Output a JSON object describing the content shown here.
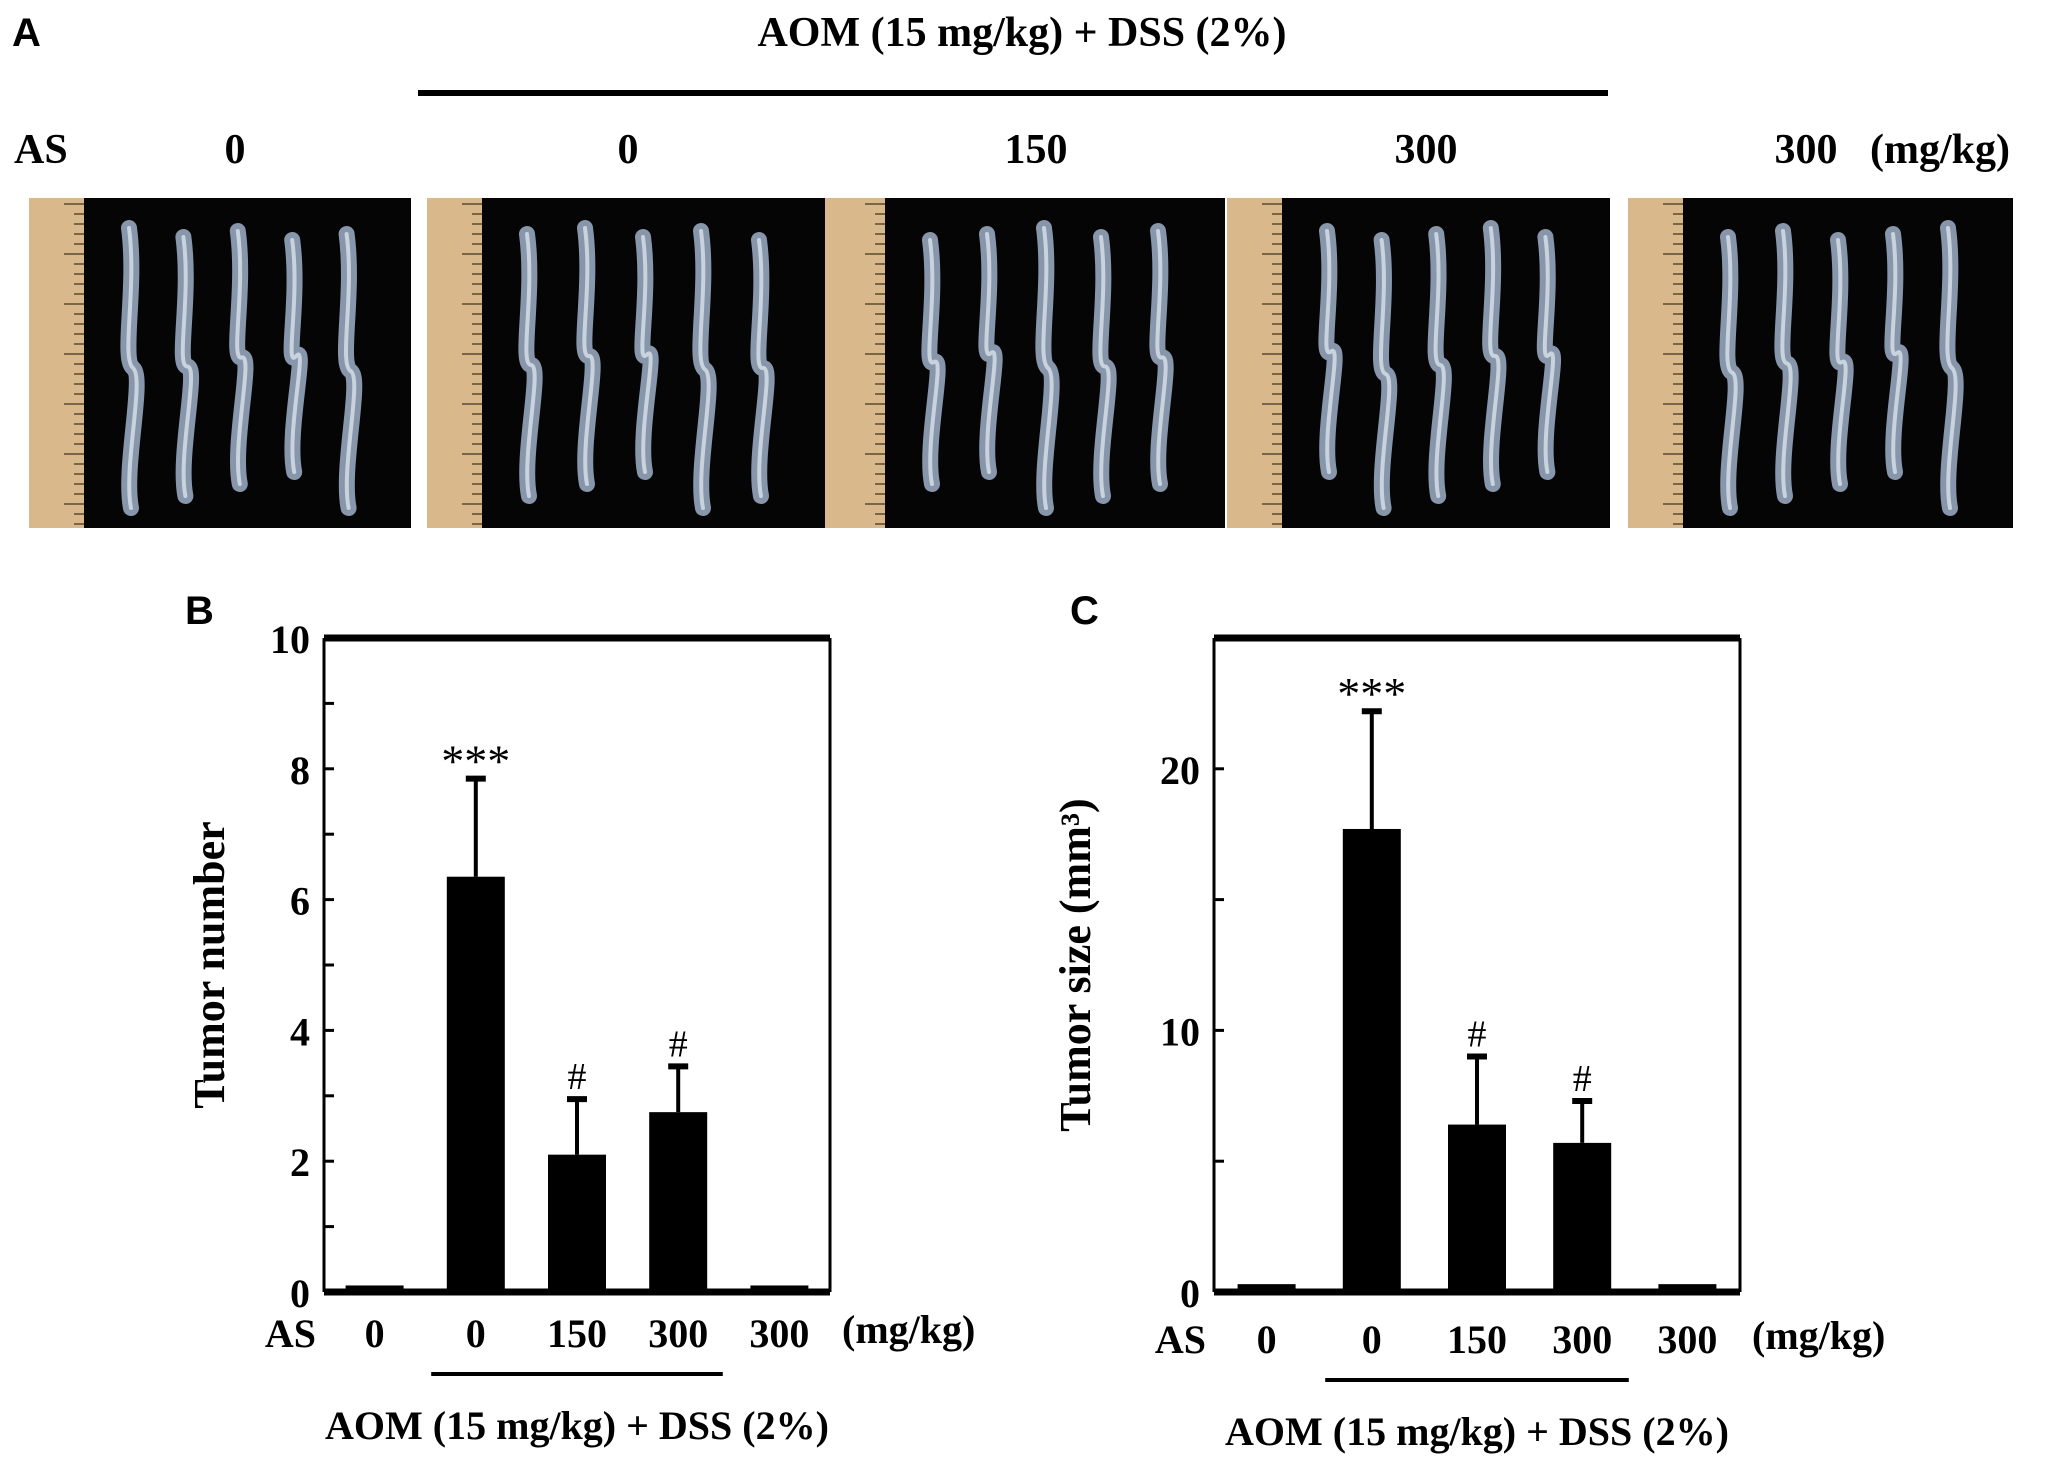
{
  "panel_a": {
    "letter": "A",
    "treatment_label": "AOM (15 mg/kg) + DSS (2%)",
    "dose_prefix": "AS",
    "doses": [
      "0",
      "0",
      "150",
      "300",
      "300"
    ],
    "dose_unit": "(mg/kg)",
    "photo_count": 5
  },
  "chart_data": [
    {
      "panel": "B",
      "type": "bar",
      "ylabel": "Tumor number",
      "ylim": [
        0,
        10
      ],
      "yticks": [
        0,
        2,
        4,
        6,
        8,
        10
      ],
      "x_prefix": "AS",
      "categories": [
        "0",
        "0",
        "150",
        "300",
        "300"
      ],
      "unit": "(mg/kg)",
      "group_label": "AOM (15 mg/kg) + DSS (2%)",
      "values": [
        0.1,
        6.35,
        2.1,
        2.75,
        0.1
      ],
      "errors": [
        0,
        1.5,
        0.85,
        0.7,
        0
      ],
      "annotations": [
        "",
        "***",
        "#",
        "#",
        ""
      ]
    },
    {
      "panel": "C",
      "type": "bar",
      "ylabel": "Tumor size (mm³)",
      "ylim": [
        0,
        25
      ],
      "yticks": [
        0,
        10,
        20
      ],
      "x_prefix": "AS",
      "categories": [
        "0",
        "0",
        "150",
        "300",
        "300"
      ],
      "unit": "(mg/kg)",
      "group_label": "AOM (15 mg/kg) + DSS (2%)",
      "values": [
        0.3,
        17.7,
        6.4,
        5.7,
        0.3
      ],
      "errors": [
        0,
        4.5,
        2.6,
        1.6,
        0
      ],
      "annotations": [
        "",
        "***",
        "#",
        "#",
        ""
      ]
    }
  ],
  "colors": {
    "bar": "#000000",
    "photo_background": "#050505",
    "ruler": "#d9b98c"
  }
}
